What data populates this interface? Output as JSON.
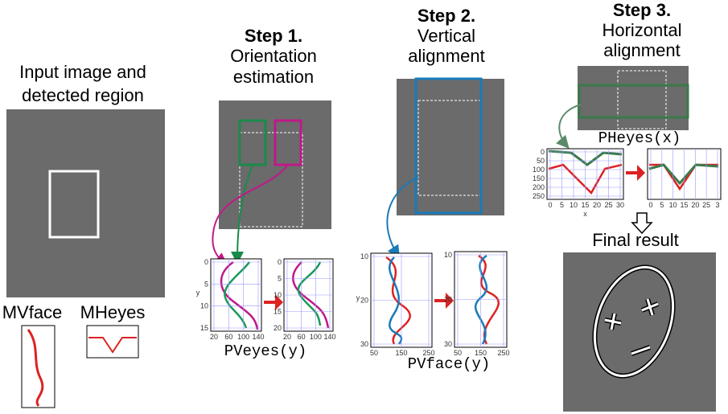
{
  "input": {
    "title_lines": [
      "Input image and",
      "detected region"
    ],
    "mvface_label": "MVface",
    "mheyes_label": "MHeyes"
  },
  "step1": {
    "step": "Step 1.",
    "title_lines": [
      "Orientation",
      "estimation"
    ],
    "plot1_yticks": [
      "0",
      "5",
      "10",
      "15"
    ],
    "plot1_xticks": [
      "20",
      "60",
      "100",
      "140"
    ],
    "plot1_axis": "y",
    "plot2_yticks": [
      "0",
      "5",
      "10",
      "15",
      "20"
    ],
    "plot2_xticks": [
      "20",
      "60",
      "100",
      "140"
    ],
    "caption": "PVeyes(y)"
  },
  "step2": {
    "step": "Step 2.",
    "title_lines": [
      "Vertical",
      "alignment"
    ],
    "plot1_yticks": [
      "10",
      "20",
      "30"
    ],
    "plot1_xticks": [
      "50",
      "150",
      "250"
    ],
    "plot1_axis": "y",
    "plot2_yticks": [
      "10",
      "20",
      "30"
    ],
    "plot2_xticks": [
      "50",
      "150",
      "250"
    ],
    "caption": "PVface(y)"
  },
  "step3": {
    "step": "Step 3.",
    "title_lines": [
      "Horizontal",
      "alignment"
    ],
    "caption": "PHeyes(x)",
    "plot1_yticks": [
      "0",
      "50",
      "100",
      "150",
      "200",
      "250"
    ],
    "plot1_xticks": [
      "0",
      "5",
      "10",
      "15",
      "20",
      "25",
      "30"
    ],
    "plot1_axis": "x",
    "plot2_xticks": [
      "0",
      "5",
      "10",
      "15",
      "20",
      "25",
      "3"
    ]
  },
  "final": {
    "title": "Final result"
  }
}
